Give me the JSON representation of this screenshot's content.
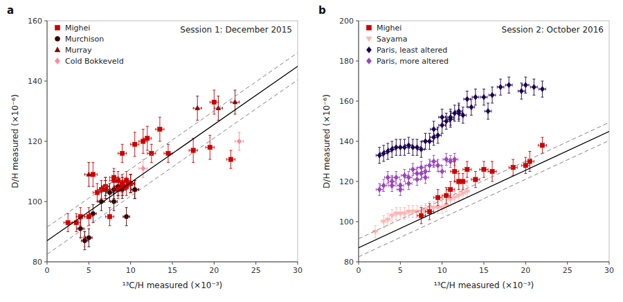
{
  "chart_data": [
    {
      "type": "scatter",
      "title": "Session 1: December 2015",
      "xlabel": "¹³C/H measured (×10⁻³)",
      "ylabel": "D/H measured (×10⁻⁶)",
      "annotations": [
        {
          "text": "a"
        }
      ],
      "xlim": [
        0,
        30
      ],
      "ylim": [
        80,
        160
      ],
      "xticks": [
        0,
        5,
        10,
        15,
        20,
        25,
        30
      ],
      "yticks": [
        80,
        100,
        120,
        140,
        160
      ],
      "grid": false,
      "legend": "upper left",
      "series": [
        {
          "name": "Mighei",
          "color": "#CC0000",
          "marker": "square",
          "x": [
            2.5,
            3.5,
            4.0,
            5.0,
            5.5,
            6.0,
            6.5,
            7.0,
            7.0,
            7.5,
            8.0,
            8.0,
            8.5,
            8.5,
            9.0,
            9.0,
            9.0,
            9.5,
            9.5,
            10.0,
            10.5,
            11.5,
            12.0,
            12.5,
            13.5,
            14.5,
            17.5,
            19.5,
            20.0,
            22.0
          ],
          "values": [
            93,
            93,
            95,
            95,
            109,
            103,
            104,
            104,
            105,
            95,
            108,
            107,
            107,
            104,
            105,
            106,
            116,
            105,
            107,
            106,
            119,
            120,
            121,
            116,
            124,
            116,
            117,
            118,
            133,
            114
          ],
          "xerr": [
            0.5,
            0.5,
            0.5,
            0.5,
            0.5,
            0.5,
            0.5,
            0.5,
            0.5,
            0.5,
            0.5,
            0.5,
            0.5,
            0.5,
            0.5,
            0.5,
            0.5,
            0.5,
            0.5,
            0.5,
            0.5,
            0.5,
            0.5,
            0.5,
            0.5,
            0.5,
            0.5,
            0.5,
            0.5,
            0.5
          ],
          "yerr": [
            3,
            3,
            3,
            3,
            4,
            3,
            3,
            3,
            3,
            3,
            3,
            3,
            3,
            3,
            3,
            3,
            3,
            3,
            3,
            3,
            4,
            4,
            4,
            3,
            4,
            3,
            4,
            4,
            4,
            3
          ]
        },
        {
          "name": "Murchison",
          "color": "#3d0000",
          "marker": "circle",
          "x": [
            4.0,
            4.5,
            5.0,
            5.5,
            6.5,
            7.0,
            7.0,
            7.5,
            8.0,
            8.0,
            8.5,
            9.0,
            9.5,
            10.0,
            10.5
          ],
          "values": [
            91,
            87,
            88,
            96,
            100,
            104,
            105,
            103,
            104,
            100,
            105,
            104,
            95,
            106,
            104
          ],
          "xerr": [
            0.4,
            0.4,
            0.4,
            0.4,
            0.4,
            0.4,
            0.4,
            0.4,
            0.4,
            0.4,
            0.4,
            0.4,
            0.4,
            0.4,
            0.4
          ],
          "yerr": [
            3,
            3,
            3,
            3,
            3,
            3,
            3,
            3,
            3,
            3,
            3,
            3,
            3,
            3,
            3
          ]
        },
        {
          "name": "Murray",
          "color": "#8B0000",
          "marker": "triangle-up",
          "x": [
            5.0,
            8.5,
            9.0,
            10.0,
            10.5,
            18.0,
            20.5,
            22.5
          ],
          "values": [
            109,
            105,
            105,
            106,
            104,
            131,
            131,
            133
          ],
          "xerr": [
            0.5,
            0.5,
            0.5,
            0.5,
            0.5,
            0.5,
            0.5,
            0.5
          ],
          "yerr": [
            4,
            3,
            3,
            3,
            3,
            4,
            4,
            4
          ]
        },
        {
          "name": "Cold Bokkeveld",
          "color": "#FF8899",
          "marker": "diamond",
          "x": [
            4.5,
            11.5,
            23.0
          ],
          "values": [
            88,
            111,
            120
          ],
          "xerr": [
            0.5,
            0.5,
            0.5
          ],
          "yerr": [
            3,
            3,
            3
          ]
        },
        {
          "type": "line",
          "color": "#000000",
          "line_style": "solid",
          "x": [
            0,
            30
          ],
          "values": [
            87.0,
            144.9
          ]
        },
        {
          "type": "line",
          "color": "#808080",
          "line_style": "dashed",
          "x": [
            0,
            30
          ],
          "values": [
            91.5,
            149.4
          ]
        },
        {
          "type": "line",
          "color": "#808080",
          "line_style": "dashed",
          "x": [
            0,
            30
          ],
          "values": [
            82.5,
            140.4
          ]
        }
      ]
    },
    {
      "type": "scatter",
      "title": "Session 2: October 2016",
      "xlabel": "¹³C/H measured (×10⁻³)",
      "ylabel": "D/H measured (×10⁻⁶)",
      "annotations": [
        {
          "text": "b"
        }
      ],
      "xlim": [
        0,
        30
      ],
      "ylim": [
        80,
        200
      ],
      "xticks": [
        0,
        5,
        10,
        15,
        20,
        25,
        30
      ],
      "yticks": [
        80,
        100,
        120,
        140,
        160,
        180,
        200
      ],
      "grid": false,
      "legend": "upper left",
      "series": [
        {
          "name": "Mighei",
          "color": "#CC0000",
          "marker": "square",
          "x": [
            7.5,
            8.5,
            9.5,
            10.5,
            11.0,
            11.5,
            12.0,
            12.5,
            13.0,
            14.0,
            15.0,
            16.0,
            18.5,
            20.0,
            20.5,
            22.0
          ],
          "values": [
            103,
            105,
            112,
            113,
            116,
            125,
            120,
            120,
            126,
            121,
            126,
            125,
            127,
            128,
            130,
            138
          ],
          "xerr": [
            0.5,
            0.5,
            0.5,
            0.5,
            0.5,
            0.5,
            0.5,
            0.5,
            0.5,
            0.5,
            0.5,
            0.5,
            0.5,
            0.5,
            0.5,
            0.5
          ],
          "yerr": [
            4,
            4,
            4,
            4,
            4,
            5,
            4,
            4,
            4,
            4,
            4,
            5,
            4,
            4,
            5,
            4
          ]
        },
        {
          "name": "Sayama",
          "color": "#FFB3B3",
          "marker": "triangle-down",
          "x": [
            2.0,
            3.0,
            3.5,
            4.0,
            4.5,
            5.0,
            5.5,
            6.0,
            6.5,
            7.0,
            7.5,
            8.0,
            8.0,
            8.5,
            9.0,
            9.5,
            10.0,
            10.5,
            11.0,
            11.5,
            12.0,
            12.5,
            13.0
          ],
          "values": [
            95,
            100,
            101,
            103,
            104,
            104,
            104,
            105,
            105,
            105,
            105,
            106,
            105,
            107,
            107,
            107,
            107,
            108,
            111,
            112,
            113,
            114,
            115
          ],
          "xerr": [
            0.3,
            0.3,
            0.3,
            0.3,
            0.3,
            0.3,
            0.3,
            0.3,
            0.3,
            0.3,
            0.3,
            0.3,
            0.3,
            0.3,
            0.3,
            0.3,
            0.3,
            0.3,
            0.3,
            0.3,
            0.3,
            0.3,
            0.3
          ],
          "yerr": [
            3,
            3,
            3,
            3,
            3,
            3,
            3,
            3,
            3,
            3,
            3,
            3,
            3,
            3,
            3,
            3,
            3,
            3,
            3,
            3,
            3,
            3,
            3
          ]
        },
        {
          "name": "Paris, least altered",
          "color": "#1a0050",
          "marker": "diamond",
          "x": [
            2.5,
            3.0,
            3.5,
            4.0,
            4.5,
            5.0,
            5.5,
            6.0,
            6.5,
            7.0,
            7.5,
            8.0,
            8.5,
            9.0,
            9.0,
            9.5,
            10.0,
            10.0,
            10.5,
            11.0,
            11.0,
            11.5,
            12.0,
            12.0,
            12.5,
            13.0,
            13.5,
            14.0,
            15.0,
            15.5,
            16.0,
            17.0,
            18.0,
            19.5,
            20.0,
            21.0,
            22.0
          ],
          "values": [
            133,
            134,
            135,
            136,
            137,
            137,
            137,
            138,
            137,
            137,
            136,
            140,
            140,
            142,
            146,
            143,
            152,
            148,
            150,
            151,
            152,
            154,
            154,
            155,
            153,
            161,
            157,
            162,
            162,
            155,
            163,
            167,
            168,
            165,
            168,
            167,
            166
          ],
          "xerr": [
            0.4,
            0.4,
            0.4,
            0.4,
            0.4,
            0.4,
            0.4,
            0.4,
            0.4,
            0.4,
            0.4,
            0.4,
            0.4,
            0.4,
            0.4,
            0.4,
            0.4,
            0.4,
            0.4,
            0.4,
            0.4,
            0.4,
            0.4,
            0.4,
            0.4,
            0.4,
            0.4,
            0.4,
            0.4,
            0.4,
            0.4,
            0.4,
            0.4,
            0.4,
            0.4,
            0.4,
            0.4
          ],
          "yerr": [
            4,
            4,
            4,
            4,
            4,
            4,
            4,
            4,
            4,
            4,
            4,
            4,
            4,
            4,
            4,
            4,
            4,
            4,
            4,
            4,
            4,
            4,
            4,
            4,
            4,
            4,
            4,
            4,
            4,
            4,
            4,
            4,
            4,
            4,
            4,
            4,
            4
          ]
        },
        {
          "name": "Paris, more altered",
          "color": "#9944BB",
          "marker": "diamond",
          "x": [
            2.5,
            3.0,
            3.5,
            4.0,
            4.0,
            4.5,
            5.0,
            5.0,
            5.5,
            6.0,
            6.0,
            6.5,
            7.0,
            7.0,
            7.5,
            7.5,
            8.0,
            8.0,
            8.5,
            9.0,
            9.5,
            10.0,
            10.5,
            11.0,
            11.5
          ],
          "values": [
            116,
            118,
            122,
            118,
            120,
            122,
            118,
            116,
            123,
            119,
            122,
            126,
            124,
            121,
            124,
            127,
            125,
            122,
            128,
            130,
            128,
            125,
            131,
            130,
            131
          ],
          "xerr": [
            0.4,
            0.4,
            0.4,
            0.4,
            0.4,
            0.4,
            0.4,
            0.4,
            0.4,
            0.4,
            0.4,
            0.4,
            0.4,
            0.4,
            0.4,
            0.4,
            0.4,
            0.4,
            0.4,
            0.4,
            0.4,
            0.4,
            0.4,
            0.4,
            0.4
          ],
          "yerr": [
            3,
            3,
            3,
            3,
            3,
            3,
            3,
            3,
            3,
            3,
            3,
            3,
            3,
            3,
            3,
            3,
            3,
            3,
            3,
            3,
            3,
            3,
            3,
            3,
            3
          ]
        },
        {
          "type": "line",
          "color": "#000000",
          "line_style": "solid",
          "x": [
            0,
            30
          ],
          "values": [
            87.0,
            144.9
          ]
        },
        {
          "type": "line",
          "color": "#808080",
          "line_style": "dashed",
          "x": [
            0,
            30
          ],
          "values": [
            91.5,
            149.4
          ]
        },
        {
          "type": "line",
          "color": "#808080",
          "line_style": "dashed",
          "x": [
            0,
            30
          ],
          "values": [
            82.5,
            140.4
          ]
        }
      ]
    }
  ]
}
